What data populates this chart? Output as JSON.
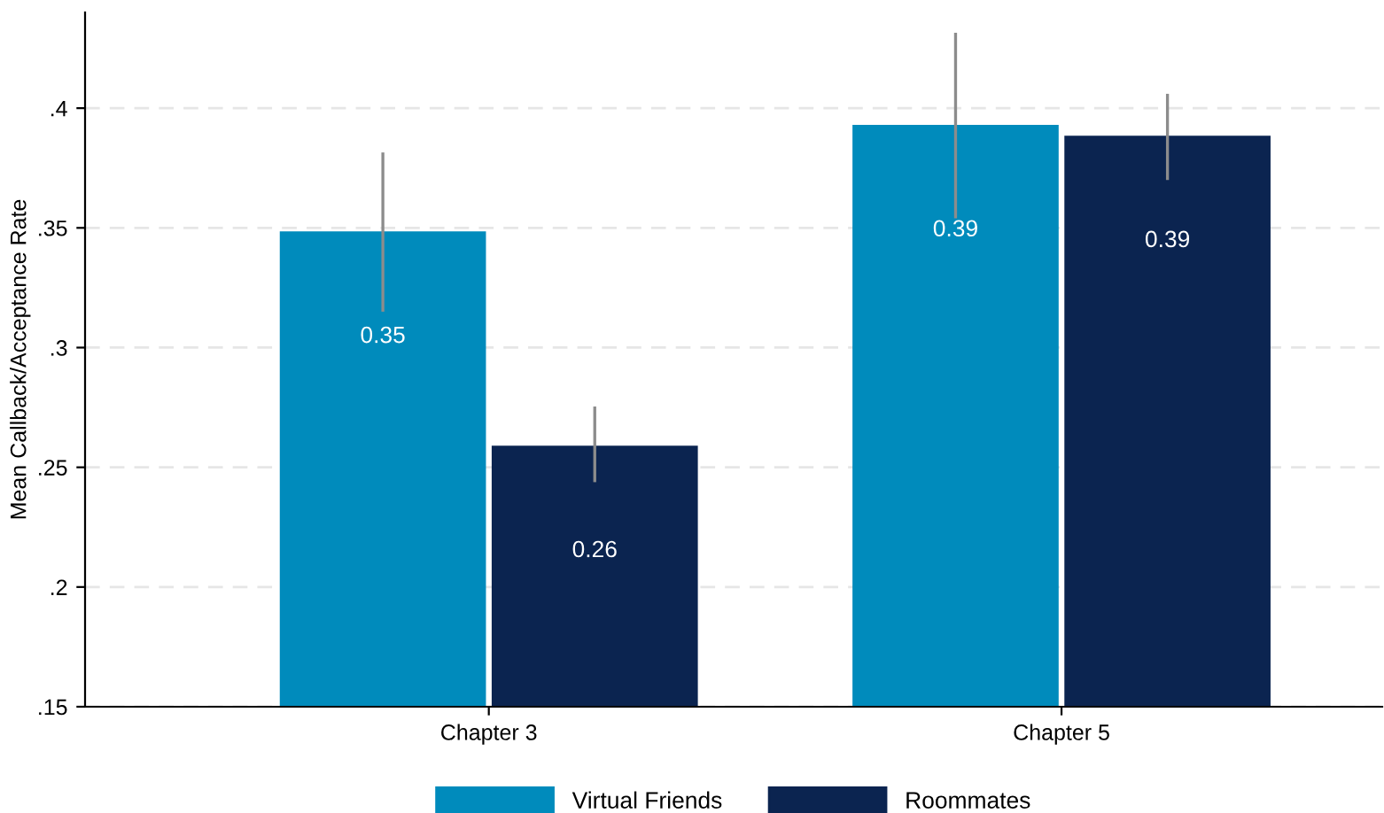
{
  "chart_data": {
    "type": "bar",
    "ylabel": "Mean Callback/Acceptance Rate",
    "categories": [
      "Chapter 3",
      "Chapter 5"
    ],
    "series": [
      {
        "name": "Virtual Friends",
        "color": "#008bbc",
        "values": [
          0.3485,
          0.393
        ],
        "errors": [
          [
            0.315,
            0.3815
          ],
          [
            0.354,
            0.4315
          ]
        ],
        "value_labels": [
          "0.35",
          "0.39"
        ]
      },
      {
        "name": "Roommates",
        "color": "#0b2450",
        "values": [
          0.259,
          0.3885
        ],
        "errors": [
          [
            0.2438,
            0.2754
          ],
          [
            0.37,
            0.406
          ]
        ],
        "value_labels": [
          "0.26",
          "0.39"
        ]
      }
    ],
    "ylim": [
      0.15,
      0.44
    ],
    "yticks": [
      {
        "value": 0.15,
        "label": ".15"
      },
      {
        "value": 0.2,
        "label": ".2"
      },
      {
        "value": 0.25,
        "label": ".25"
      },
      {
        "value": 0.3,
        "label": ".3"
      },
      {
        "value": 0.35,
        "label": ".35"
      },
      {
        "value": 0.4,
        "label": ".4"
      }
    ],
    "grid": "y",
    "legend": "bottom"
  }
}
